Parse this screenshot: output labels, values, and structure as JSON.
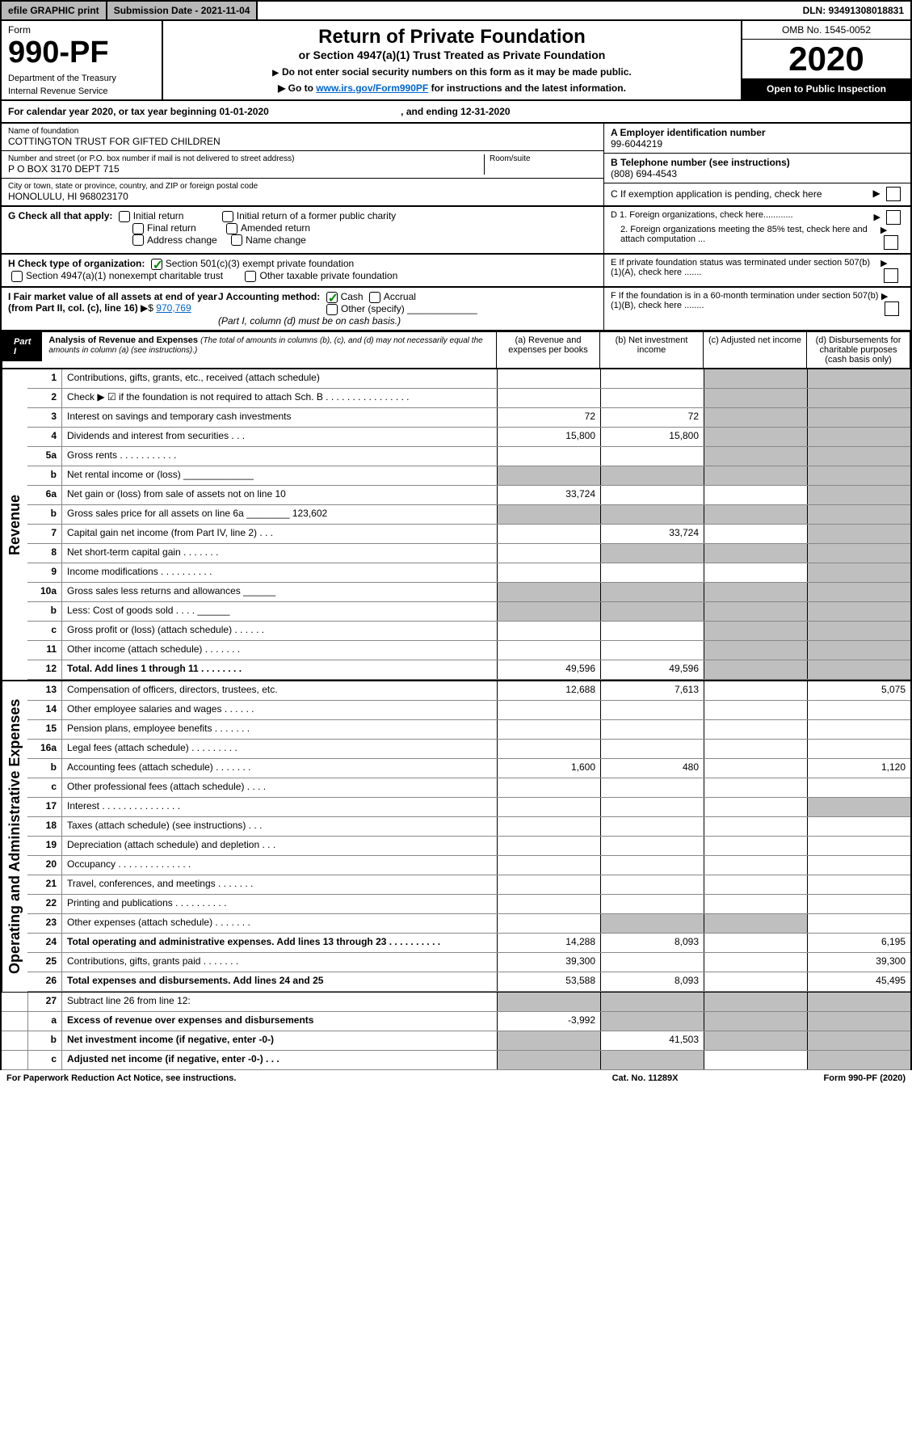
{
  "topbar": {
    "efile": "efile GRAPHIC print",
    "subdate": "Submission Date - 2021-11-04",
    "dln": "DLN: 93491308018831"
  },
  "header": {
    "form": "Form",
    "formno": "990-PF",
    "dept": "Department of the Treasury",
    "irs": "Internal Revenue Service",
    "title": "Return of Private Foundation",
    "subtitle": "or Section 4947(a)(1) Trust Treated as Private Foundation",
    "instr1": "Do not enter social security numbers on this form as it may be made public.",
    "instr2": "Go to",
    "instr2link": "www.irs.gov/Form990PF",
    "instr2b": "for instructions and the latest information.",
    "omb": "OMB No. 1545-0052",
    "year": "2020",
    "openpub": "Open to Public Inspection"
  },
  "calyear": {
    "a": "For calendar year 2020, or tax year beginning 01-01-2020",
    "b": ", and ending 12-31-2020"
  },
  "name": {
    "lbl": "Name of foundation",
    "val": "COTTINGTON TRUST FOR GIFTED CHILDREN"
  },
  "ein": {
    "lbl": "A Employer identification number",
    "val": "99-6044219"
  },
  "addr": {
    "lbl": "Number and street (or P.O. box number if mail is not delivered to street address)",
    "val": "P O BOX 3170 DEPT 715",
    "room": "Room/suite"
  },
  "phone": {
    "lbl": "B Telephone number (see instructions)",
    "val": "(808) 694-4543"
  },
  "city": {
    "lbl": "City or town, state or province, country, and ZIP or foreign postal code",
    "val": "HONOLULU, HI  968023170"
  },
  "c": "C If exemption application is pending, check here",
  "g": {
    "lbl": "G Check all that apply:",
    "o1": "Initial return",
    "o2": "Final return",
    "o3": "Address change",
    "o4": "Initial return of a former public charity",
    "o5": "Amended return",
    "o6": "Name change"
  },
  "d": {
    "d1": "D 1. Foreign organizations, check here............",
    "d2": "2. Foreign organizations meeting the 85% test, check here and attach computation ..."
  },
  "h": {
    "lbl": "H Check type of organization:",
    "o1": "Section 501(c)(3) exempt private foundation",
    "o2": "Section 4947(a)(1) nonexempt charitable trust",
    "o3": "Other taxable private foundation"
  },
  "e": "E  If private foundation status was terminated under section 507(b)(1)(A), check here .......",
  "i": {
    "lbl": "I Fair market value of all assets at end of year (from Part II, col. (c), line 16)",
    "val": "970,769"
  },
  "j": {
    "lbl": "J Accounting method:",
    "o1": "Cash",
    "o2": "Accrual",
    "o3": "Other (specify)",
    "note": "(Part I, column (d) must be on cash basis.)"
  },
  "f": "F  If the foundation is in a 60-month termination under section 507(b)(1)(B), check here ........",
  "part1": {
    "lbl": "Part I",
    "title": "Analysis of Revenue and Expenses",
    "note": "(The total of amounts in columns (b), (c), and (d) may not necessarily equal the amounts in column (a) (see instructions).)"
  },
  "cols": {
    "a": "(a)   Revenue and expenses per books",
    "b": "(b)  Net investment income",
    "c": "(c)  Adjusted net income",
    "d": "(d)  Disbursements for charitable purposes (cash basis only)"
  },
  "rev": "Revenue",
  "oae": "Operating and Administrative Expenses",
  "r": [
    {
      "n": "1",
      "d": "Contributions, gifts, grants, etc., received (attach schedule)"
    },
    {
      "n": "2",
      "d": "Check ▶ ☑ if the foundation is not required to attach Sch. B   .  .  .  .  .  .  .  .  .  .  .  .  .  .  .  ."
    },
    {
      "n": "3",
      "d": "Interest on savings and temporary cash investments",
      "a": "72",
      "b": "72"
    },
    {
      "n": "4",
      "d": "Dividends and interest from securities    .   .   .",
      "a": "15,800",
      "b": "15,800"
    },
    {
      "n": "5a",
      "d": "Gross rents     .   .   .   .   .   .   .   .   .   .   ."
    },
    {
      "n": "b",
      "d": "Net rental income or (loss)  _____________"
    },
    {
      "n": "6a",
      "d": "Net gain or (loss) from sale of assets not on line 10",
      "a": "33,724"
    },
    {
      "n": "b",
      "d": "Gross sales price for all assets on line 6a ________ 123,602"
    },
    {
      "n": "7",
      "d": "Capital gain net income (from Part IV, line 2)    .   .   .",
      "b": "33,724"
    },
    {
      "n": "8",
      "d": "Net short-term capital gain    .   .   .   .   .   .   ."
    },
    {
      "n": "9",
      "d": "Income modifications   .   .   .   .   .   .   .   .   .   ."
    },
    {
      "n": "10a",
      "d": "Gross sales less returns and allowances  ______"
    },
    {
      "n": "b",
      "d": "Less: Cost of goods sold       .   .   .   .   ______"
    },
    {
      "n": "c",
      "d": "Gross profit or (loss) (attach schedule)     .   .   .   .   .   ."
    },
    {
      "n": "11",
      "d": "Other income (attach schedule)     .   .   .   .   .   .   ."
    },
    {
      "n": "12",
      "d": "Total. Add lines 1 through 11     .   .   .   .   .   .   .   .",
      "a": "49,596",
      "b": "49,596",
      "bold": true
    }
  ],
  "e_rows": [
    {
      "n": "13",
      "d": "Compensation of officers, directors, trustees, etc.",
      "a": "12,688",
      "b": "7,613",
      "dd": "5,075"
    },
    {
      "n": "14",
      "d": "Other employee salaries and wages     .   .   .   .   .   ."
    },
    {
      "n": "15",
      "d": "Pension plans, employee benefits    .   .   .   .   .   .   ."
    },
    {
      "n": "16a",
      "d": "Legal fees (attach schedule)   .   .   .   .   .   .   .   .   ."
    },
    {
      "n": "b",
      "d": "Accounting fees (attach schedule)    .   .   .   .   .   .   .",
      "a": "1,600",
      "b": "480",
      "dd": "1,120"
    },
    {
      "n": "c",
      "d": "Other professional fees (attach schedule)      .   .   .   ."
    },
    {
      "n": "17",
      "d": "Interest   .   .   .   .   .   .   .   .   .   .   .   .   .   .   ."
    },
    {
      "n": "18",
      "d": "Taxes (attach schedule) (see instructions)      .   .   ."
    },
    {
      "n": "19",
      "d": "Depreciation (attach schedule) and depletion     .   .   ."
    },
    {
      "n": "20",
      "d": "Occupancy   .   .   .   .   .   .   .   .   .   .   .   .   .   ."
    },
    {
      "n": "21",
      "d": "Travel, conferences, and meetings   .   .   .   .   .   .   ."
    },
    {
      "n": "22",
      "d": "Printing and publications   .   .   .   .   .   .   .   .   .   ."
    },
    {
      "n": "23",
      "d": "Other expenses (attach schedule)    .   .   .   .   .   .   ."
    },
    {
      "n": "24",
      "d": "Total operating and administrative expenses. Add lines 13 through 23    .   .   .   .   .   .   .   .   .   .",
      "a": "14,288",
      "b": "8,093",
      "dd": "6,195",
      "bold": true
    },
    {
      "n": "25",
      "d": "Contributions, gifts, grants paid       .   .   .   .   .   .   .",
      "a": "39,300",
      "dd": "39,300"
    },
    {
      "n": "26",
      "d": "Total expenses and disbursements. Add lines 24 and 25",
      "a": "53,588",
      "b": "8,093",
      "dd": "45,495",
      "bold": true
    }
  ],
  "bottom": [
    {
      "n": "27",
      "d": "Subtract line 26 from line 12:"
    },
    {
      "n": "a",
      "d": "Excess of revenue over expenses and disbursements",
      "a": "-3,992",
      "bold": true
    },
    {
      "n": "b",
      "d": "Net investment income (if negative, enter -0-)",
      "b": "41,503",
      "bold": true
    },
    {
      "n": "c",
      "d": "Adjusted net income (if negative, enter -0-)    .   .   .",
      "bold": true
    }
  ],
  "footer": {
    "a": "For Paperwork Reduction Act Notice, see instructions.",
    "b": "Cat. No. 11289X",
    "c": "Form 990-PF (2020)"
  }
}
